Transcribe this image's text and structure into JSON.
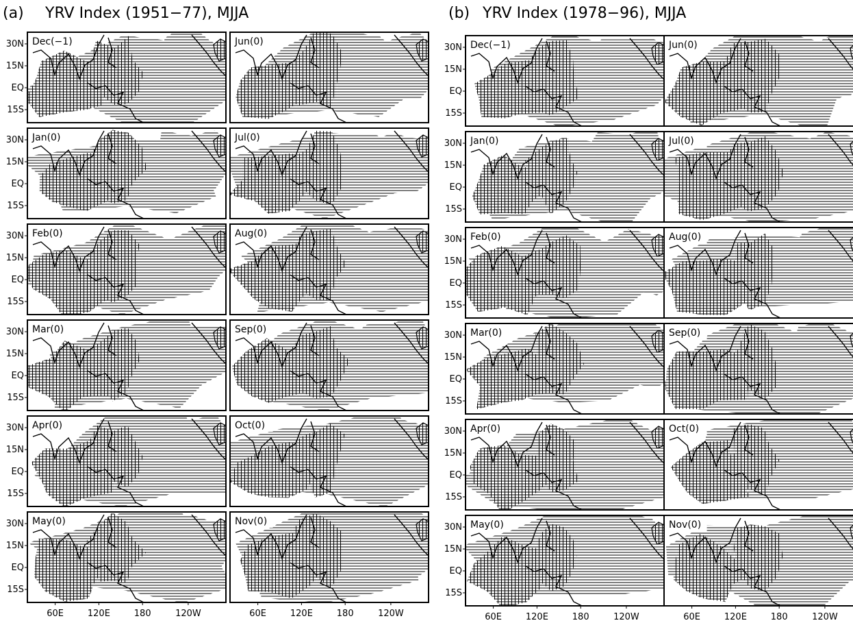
{
  "figure": {
    "panel_a": {
      "letter": "(a)",
      "title": "YRV Index (1951−77), MJJA",
      "left_column": [
        "Dec(−1)",
        "Jan(0)",
        "Feb(0)",
        "Mar(0)",
        "Apr(0)",
        "May(0)"
      ],
      "right_column": [
        "Jun(0)",
        "Jul(0)",
        "Aug(0)",
        "Sep(0)",
        "Oct(0)",
        "Nov(0)"
      ]
    },
    "panel_b": {
      "letter": "(b)",
      "title": "YRV Index (1978−96), MJJA",
      "left_column": [
        "Dec(−1)",
        "Jan(0)",
        "Feb(0)",
        "Mar(0)",
        "Apr(0)",
        "May(0)"
      ],
      "right_column": [
        "Jun(0)",
        "Jul(0)",
        "Aug(0)",
        "Sep(0)",
        "Oct(0)",
        "Nov(0)"
      ]
    },
    "lat_ticks": [
      "30N",
      "15N",
      "EQ",
      "15S"
    ],
    "lon_ticks": [
      "60E",
      "120E",
      "180",
      "120W"
    ],
    "shading_styles": [
      "horizontal-hatch",
      "cross-hatch"
    ]
  }
}
